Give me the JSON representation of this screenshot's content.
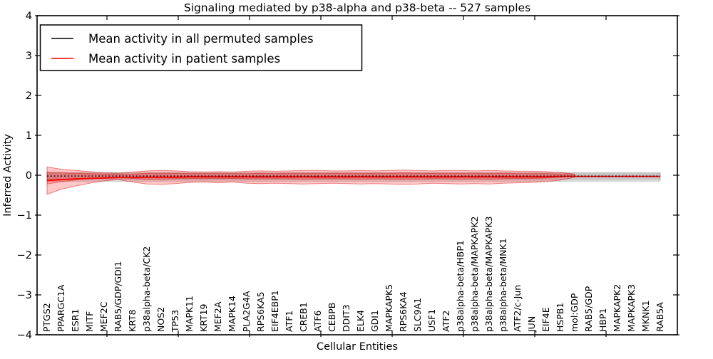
{
  "chart_data": {
    "type": "line",
    "title": "Signaling mediated by p38-alpha and p38-beta -- 527 samples",
    "xlabel": "Cellular Entities",
    "ylabel": "Inferred Activity",
    "ylim": [
      -4,
      4
    ],
    "yticks": [
      4,
      3,
      2,
      1,
      0,
      -1,
      -2,
      -3,
      -4
    ],
    "ytick_labels": [
      "4",
      "3",
      "2",
      "1",
      "0",
      "−1",
      "−2",
      "−3",
      "−4"
    ],
    "grid": false,
    "legend_position": "upper left",
    "categories": [
      "PTGS2",
      "PPARGC1A",
      "ESR1",
      "MITF",
      "MEF2C",
      "RAB5/GDP/GDI1",
      "KRT8",
      "p38alpha-beta/CK2",
      "NOS2",
      "TP53",
      "MAPK11",
      "KRT19",
      "MEF2A",
      "MAPK14",
      "PLA2G4A",
      "RPS6KA5",
      "EIF4EBP1",
      "ATF1",
      "CREB1",
      "ATF6",
      "CEBPB",
      "DDIT3",
      "ELK4",
      "GDI1",
      "MAPKAPK5",
      "RPS6KA4",
      "SLC9A1",
      "USF1",
      "ATF2",
      "p38alpha-beta/HBP1",
      "p38alpha-beta/MAPKAPK2",
      "p38alpha-beta/MAPKAPK3",
      "p38alpha-beta/MNK1",
      "ATF2/c-Jun",
      "JUN",
      "EIF4E",
      "HSPB1",
      "mol:GDP",
      "RAB5/GDP",
      "HBP1",
      "MAPKAPK2",
      "MAPKAPK3",
      "MKNK1",
      "RAB5A"
    ],
    "series": [
      {
        "name": "Mean activity in all permuted samples",
        "color": "#000000",
        "line_style": "dotted",
        "values": [
          -0.02,
          -0.02,
          -0.02,
          -0.02,
          -0.02,
          -0.02,
          -0.02,
          -0.02,
          -0.02,
          -0.02,
          -0.02,
          -0.02,
          -0.02,
          -0.02,
          -0.02,
          -0.02,
          -0.02,
          -0.02,
          -0.02,
          -0.02,
          -0.02,
          -0.02,
          -0.02,
          -0.02,
          -0.02,
          -0.02,
          -0.02,
          -0.02,
          -0.02,
          -0.02,
          -0.02,
          -0.02,
          -0.02,
          -0.02,
          -0.02,
          -0.02,
          -0.02,
          -0.02,
          -0.02,
          -0.02,
          -0.02,
          -0.02,
          -0.02,
          -0.02
        ]
      },
      {
        "name": "Mean activity in patient samples",
        "color": "#ff0000",
        "line_style": "solid",
        "values": [
          -0.13,
          -0.11,
          -0.09,
          -0.08,
          -0.07,
          -0.06,
          -0.06,
          -0.05,
          -0.05,
          -0.05,
          -0.04,
          -0.04,
          -0.04,
          -0.04,
          -0.04,
          -0.04,
          -0.04,
          -0.04,
          -0.04,
          -0.04,
          -0.04,
          -0.04,
          -0.04,
          -0.04,
          -0.04,
          -0.04,
          -0.04,
          -0.04,
          -0.04,
          -0.04,
          -0.04,
          -0.04,
          -0.04,
          -0.04,
          -0.04,
          -0.04,
          -0.03,
          -0.03,
          -0.03,
          -0.03,
          -0.03,
          -0.03,
          -0.03,
          -0.03
        ]
      }
    ],
    "bands": [
      {
        "name": "permuted-outer-band",
        "color": "rgba(0,0,0,0.12)",
        "edge": "rgba(0,0,0,0.18)",
        "start": 0,
        "end": 43,
        "upper": 0.07,
        "lower": -0.15
      },
      {
        "name": "permuted-inner-band",
        "color": "rgba(0,0,0,0.10)",
        "edge": "rgba(0,0,0,0.14)",
        "start": 0,
        "end": 43,
        "upper": 0.04,
        "lower": -0.1
      },
      {
        "name": "patient-outer-band",
        "color": "rgba(255,0,0,0.22)",
        "edge": "rgba(215,0,0,0.45)",
        "start": 0,
        "end": 37,
        "upper": [
          0.21,
          0.15,
          0.12,
          0.09,
          0.06,
          0.05,
          0.08,
          0.11,
          0.12,
          0.11,
          0.09,
          0.08,
          0.09,
          0.08,
          0.1,
          0.11,
          0.1,
          0.11,
          0.12,
          0.12,
          0.11,
          0.11,
          0.12,
          0.11,
          0.12,
          0.13,
          0.12,
          0.11,
          0.12,
          0.12,
          0.11,
          0.12,
          0.11,
          0.1,
          0.1,
          0.09,
          0.07,
          0.03
        ],
        "lower": [
          -0.48,
          -0.35,
          -0.27,
          -0.2,
          -0.14,
          -0.11,
          -0.17,
          -0.22,
          -0.23,
          -0.21,
          -0.18,
          -0.17,
          -0.19,
          -0.17,
          -0.2,
          -0.21,
          -0.2,
          -0.21,
          -0.22,
          -0.21,
          -0.2,
          -0.21,
          -0.22,
          -0.21,
          -0.22,
          -0.23,
          -0.22,
          -0.2,
          -0.21,
          -0.22,
          -0.21,
          -0.22,
          -0.2,
          -0.19,
          -0.18,
          -0.16,
          -0.12,
          -0.05
        ]
      },
      {
        "name": "patient-inner-band",
        "color": "rgba(255,0,0,0.22)",
        "edge": "rgba(215,0,0,0.40)",
        "start": 0,
        "end": 37,
        "upper": [
          0.08,
          0.06,
          0.05,
          0.04,
          0.03,
          0.02,
          0.03,
          0.05,
          0.05,
          0.05,
          0.04,
          0.04,
          0.04,
          0.04,
          0.04,
          0.05,
          0.04,
          0.05,
          0.05,
          0.05,
          0.05,
          0.05,
          0.05,
          0.05,
          0.05,
          0.06,
          0.05,
          0.05,
          0.05,
          0.05,
          0.05,
          0.05,
          0.05,
          0.04,
          0.04,
          0.04,
          0.03,
          0.01
        ],
        "lower": [
          -0.22,
          -0.16,
          -0.12,
          -0.09,
          -0.06,
          -0.05,
          -0.08,
          -0.1,
          -0.1,
          -0.09,
          -0.08,
          -0.08,
          -0.08,
          -0.08,
          -0.09,
          -0.09,
          -0.09,
          -0.09,
          -0.1,
          -0.09,
          -0.09,
          -0.09,
          -0.1,
          -0.09,
          -0.1,
          -0.1,
          -0.1,
          -0.09,
          -0.09,
          -0.1,
          -0.09,
          -0.1,
          -0.09,
          -0.08,
          -0.08,
          -0.07,
          -0.05,
          -0.02
        ]
      }
    ]
  }
}
